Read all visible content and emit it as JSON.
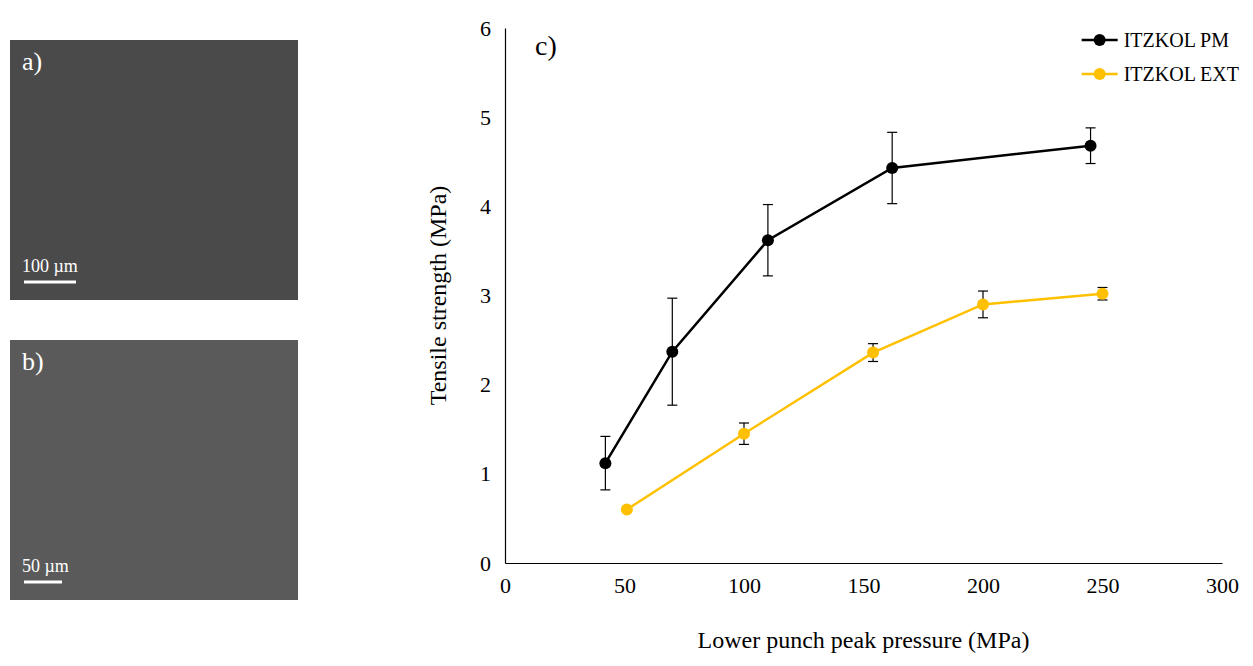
{
  "images": [
    {
      "label": "a)",
      "scale_bar": "100 µm"
    },
    {
      "label": "b)",
      "scale_bar": "50 µm"
    }
  ],
  "chart_data": {
    "type": "line",
    "panel_label": "c)",
    "x_label": "Lower punch peak pressure (MPa)",
    "y_label": "Tensile strength (MPa)",
    "xlim": [
      0,
      300
    ],
    "xticks": [
      0,
      50,
      100,
      150,
      200,
      250,
      300
    ],
    "ylim": [
      0,
      6
    ],
    "yticks": [
      0,
      1,
      2,
      3,
      4,
      5,
      6
    ],
    "grid": false,
    "legend": "top-right",
    "series": [
      {
        "name": "ITZKOL PM",
        "color": "#000000",
        "marker": "circle",
        "x": [
          42,
          70,
          110,
          162,
          245
        ],
        "values": [
          1.12,
          2.37,
          3.62,
          4.43,
          4.68
        ],
        "errors": [
          0.3,
          0.6,
          0.4,
          0.4,
          0.2
        ]
      },
      {
        "name": "ITZKOL EXT",
        "color": "#ffc000",
        "marker": "circle",
        "x": [
          51,
          100,
          154,
          200,
          250
        ],
        "values": [
          0.6,
          1.45,
          2.36,
          2.9,
          3.02
        ],
        "errors": [
          0,
          0.12,
          0.1,
          0.15,
          0.07
        ]
      }
    ]
  }
}
